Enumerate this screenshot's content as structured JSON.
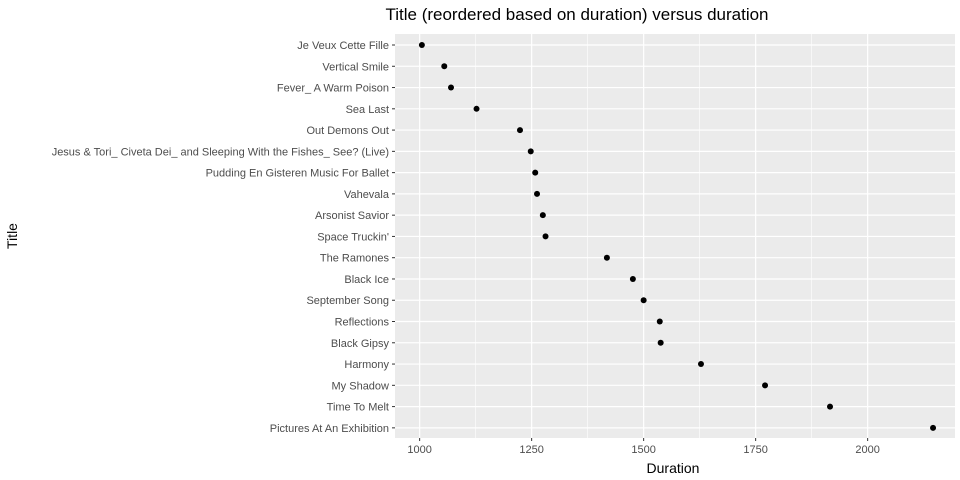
{
  "chart_data": {
    "type": "scatter",
    "title": "Title (reordered based on duration) versus duration",
    "xlabel": "Duration",
    "ylabel": "Title",
    "xlim": [
      945,
      2195
    ],
    "xticks": [
      1000,
      1250,
      1500,
      1750,
      2000
    ],
    "xtick_labels": [
      "1000",
      "1250",
      "1500",
      "1750",
      "2000"
    ],
    "grid": true,
    "point_color": "#000000",
    "panel_color": "#ebebeb",
    "grid_color": "#ffffff",
    "categories": [
      "Je Veux Cette Fille",
      "Vertical Smile",
      "Fever_ A Warm Poison",
      "Sea Last",
      "Out Demons Out",
      "Jesus & Tori_ Civeta Dei_ and Sleeping With the Fishes_ See? (Live)",
      "Pudding En Gisteren Music For Ballet",
      "Vahevala",
      "Arsonist Savior",
      "Space Truckin'",
      "The Ramones",
      "Black Ice",
      "September Song",
      "Reflections",
      "Black Gipsy",
      "Harmony",
      "My Shadow",
      "Time To Melt",
      "Pictures At An Exhibition"
    ],
    "values": [
      1005,
      1055,
      1070,
      1127,
      1224,
      1248,
      1258,
      1262,
      1275,
      1281,
      1418,
      1476,
      1500,
      1536,
      1538,
      1628,
      1771,
      1916,
      2146
    ]
  }
}
